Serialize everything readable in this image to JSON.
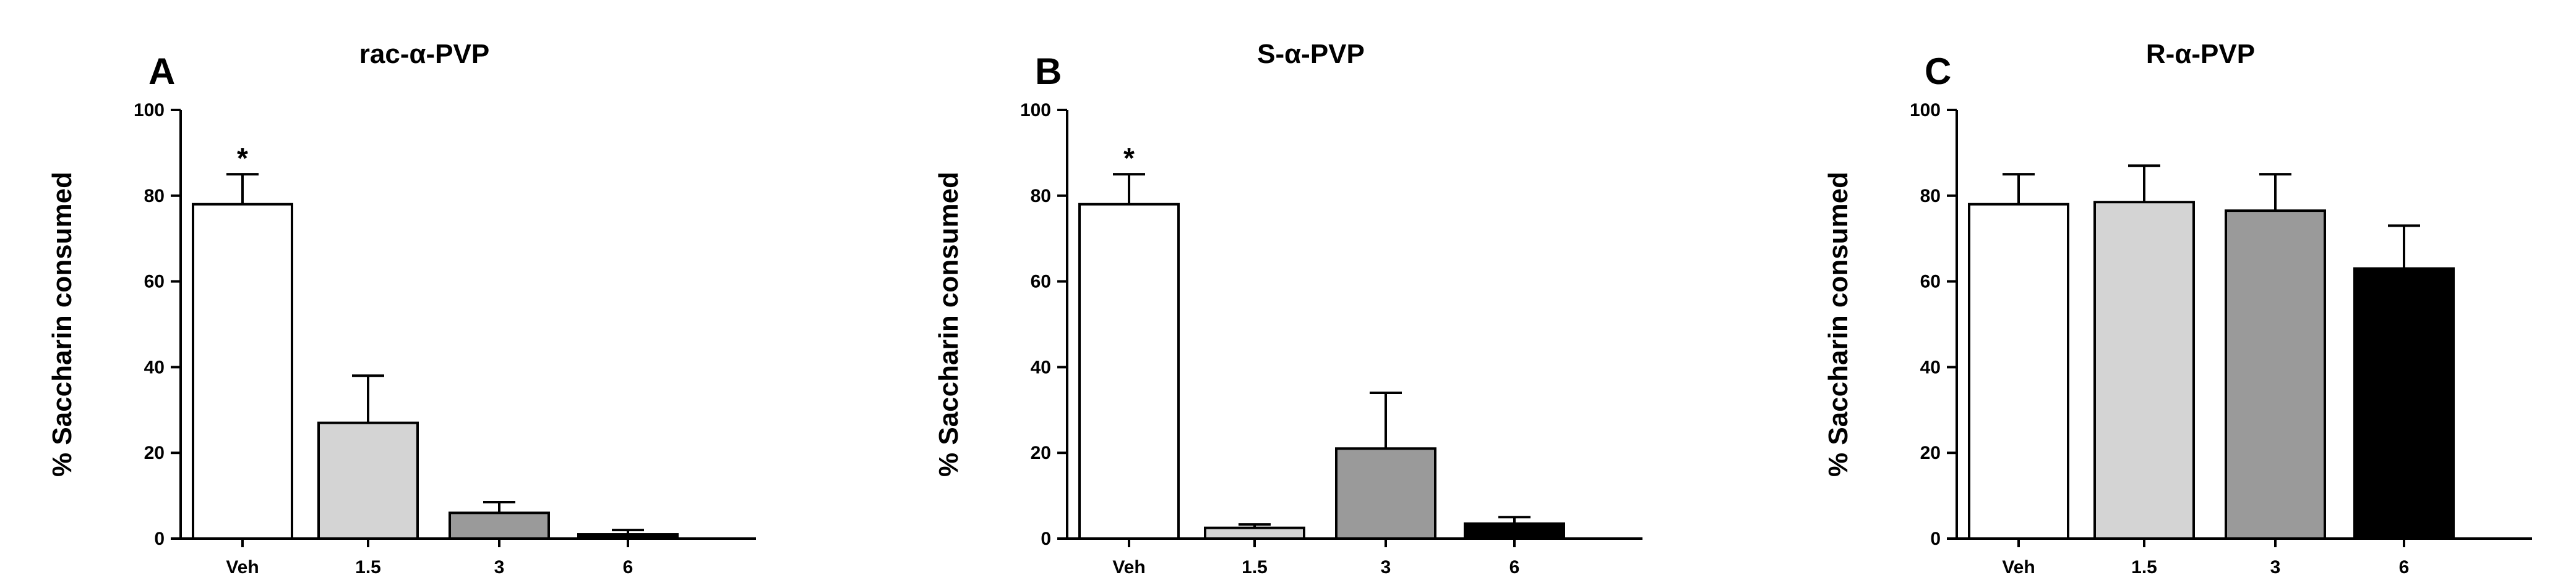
{
  "chart_data": [
    {
      "type": "bar",
      "panel": "A",
      "title": "rac-α-PVP",
      "ylabel": "% Saccharin consumed",
      "xlabel": "",
      "ylim": [
        0,
        100
      ],
      "yticks": [
        0,
        20,
        40,
        60,
        80,
        100
      ],
      "categories": [
        "Veh",
        "1.5",
        "3",
        "6"
      ],
      "values": [
        78,
        27,
        6,
        1
      ],
      "errors": [
        7,
        11,
        2.5,
        1
      ],
      "colors": [
        "#ffffff",
        "#d4d4d4",
        "#9a9a9a",
        "#000000"
      ],
      "annotations": [
        {
          "category": "Veh",
          "text": "*"
        }
      ],
      "grid": false,
      "legend": "none"
    },
    {
      "type": "bar",
      "panel": "B",
      "title": "S-α-PVP",
      "ylabel": "% Saccharin consumed",
      "xlabel": "",
      "ylim": [
        0,
        100
      ],
      "yticks": [
        0,
        20,
        40,
        60,
        80,
        100
      ],
      "categories": [
        "Veh",
        "1.5",
        "3",
        "6"
      ],
      "values": [
        78,
        2.5,
        21,
        3.5
      ],
      "errors": [
        7,
        0.8,
        13,
        1.5
      ],
      "colors": [
        "#ffffff",
        "#d4d4d4",
        "#9a9a9a",
        "#000000"
      ],
      "annotations": [
        {
          "category": "Veh",
          "text": "*"
        }
      ],
      "grid": false,
      "legend": "none"
    },
    {
      "type": "bar",
      "panel": "C",
      "title": "R-α-PVP",
      "ylabel": "% Saccharin consumed",
      "xlabel": "",
      "ylim": [
        0,
        100
      ],
      "yticks": [
        0,
        20,
        40,
        60,
        80,
        100
      ],
      "categories": [
        "Veh",
        "1.5",
        "3",
        "6"
      ],
      "values": [
        78,
        78.5,
        76.5,
        63
      ],
      "errors": [
        7,
        8.5,
        8.5,
        10
      ],
      "colors": [
        "#ffffff",
        "#d4d4d4",
        "#9a9a9a",
        "#000000"
      ],
      "annotations": [],
      "grid": false,
      "legend": "none"
    }
  ]
}
